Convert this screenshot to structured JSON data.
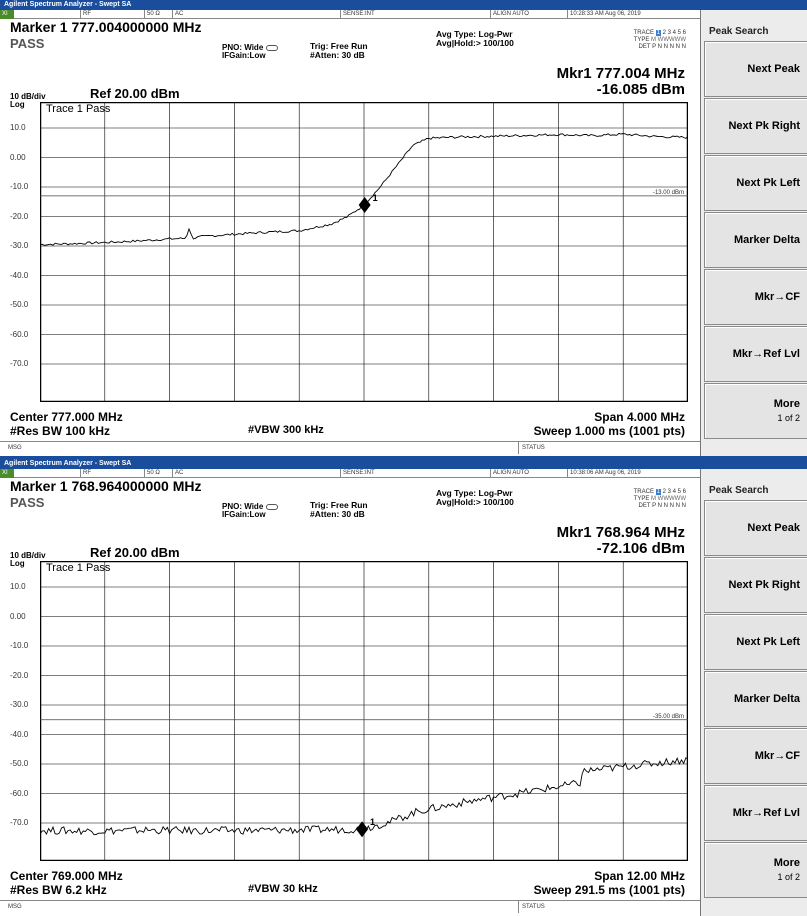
{
  "windows": [
    {
      "title": "Agilent Spectrum Analyzer - Swept SA",
      "infobar": {
        "x": "XI",
        "rf": "RF",
        "ohm": "50 Ω",
        "ac": "AC",
        "sense": "SENSE:INT",
        "align": "ALIGN AUTO",
        "time": "10:28:33 AM Aug 06, 2019"
      },
      "marker_title": "Marker 1 777.004000000 MHz",
      "pass": "PASS",
      "pno": "PNO: Wide",
      "ifgain": "IFGain:Low",
      "trig": "Trig: Free Run",
      "atten": "#Atten: 30 dB",
      "avg_type": "Avg Type: Log-Pwr",
      "avg_hold": "Avg|Hold:> 100/100",
      "trace_row": "TRACE 1 2 3 4 5 6",
      "trace_num": "1",
      "trace_rest": " 2 3 4 5 6",
      "trace_label": "TRACE",
      "type_label": "TYPE",
      "type_row": "M WWWWW",
      "det_label": "DET",
      "det_row": "P N N N N N",
      "mkr_freq": "Mkr1 777.004 MHz",
      "mkr_amp": "-16.085 dBm",
      "scale1": "10 dB/div",
      "scale2": "Log",
      "ref": "Ref 20.00 dBm",
      "trace_name": "Trace 1 Pass",
      "limit_label": "-13.00 dBm",
      "marker_label": "1",
      "ylabels": [
        "10.0",
        "0.00",
        "-10.0",
        "-20.0",
        "-30.0",
        "-40.0",
        "-50.0",
        "-60.0",
        "-70.0"
      ],
      "center": "Center 777.000 MHz",
      "resbw": "#Res BW 100 kHz",
      "vbw": "#VBW 300 kHz",
      "span": "Span 4.000 MHz",
      "sweep": "Sweep  1.000 ms (1001 pts)",
      "msg": "MSG",
      "status": "STATUS",
      "softkeys": {
        "title": "Peak Search",
        "buttons": [
          "Next Peak",
          "Next Pk Right",
          "Next Pk Left",
          "Marker Delta",
          "Mkr→CF",
          "Mkr→Ref Lvl"
        ],
        "more": "More",
        "more_sub": "1 of 2"
      }
    },
    {
      "title": "Agilent Spectrum Analyzer - Swept SA",
      "infobar": {
        "x": "XI",
        "rf": "RF",
        "ohm": "50 Ω",
        "ac": "AC",
        "sense": "SENSE:INT",
        "align": "ALIGN AUTO",
        "time": "10:38:06 AM Aug 06, 2019"
      },
      "marker_title": "Marker 1 768.964000000 MHz",
      "pass": "PASS",
      "pno": "PNO: Wide",
      "ifgain": "IFGain:Low",
      "trig": "Trig: Free Run",
      "atten": "#Atten: 30 dB",
      "avg_type": "Avg Type: Log-Pwr",
      "avg_hold": "Avg|Hold:> 100/100",
      "trace_num": "1",
      "trace_rest": " 2 3 4 5 6",
      "trace_label": "TRACE",
      "type_label": "TYPE",
      "type_row": "M WWWWW",
      "det_label": "DET",
      "det_row": "P N N N N N",
      "mkr_freq": "Mkr1 768.964 MHz",
      "mkr_amp": "-72.106 dBm",
      "scale1": "10 dB/div",
      "scale2": "Log",
      "ref": "Ref 20.00 dBm",
      "trace_name": "Trace 1 Pass",
      "limit_label": "-35.00 dBm",
      "marker_label": "1",
      "ylabels": [
        "10.0",
        "0.00",
        "-10.0",
        "-20.0",
        "-30.0",
        "-40.0",
        "-50.0",
        "-60.0",
        "-70.0"
      ],
      "center": "Center 769.000 MHz",
      "resbw": "#Res BW 6.2 kHz",
      "vbw": "#VBW 30 kHz",
      "span": "Span 12.00 MHz",
      "sweep": "Sweep  291.5 ms (1001 pts)",
      "msg": "MSG",
      "status": "STATUS",
      "softkeys": {
        "title": "Peak Search",
        "buttons": [
          "Next Peak",
          "Next Pk Right",
          "Next Pk Left",
          "Marker Delta",
          "Mkr→CF",
          "Mkr→Ref Lvl"
        ],
        "more": "More",
        "more_sub": "1 of 2"
      }
    }
  ],
  "colors": {
    "titlebar": "#1a4e9c",
    "trace": "#000000",
    "grid": "#000000",
    "limit": "#000000"
  },
  "chart_data": [
    {
      "type": "line",
      "title": "",
      "xlabel": "",
      "ylabel": "",
      "x_range_mhz": [
        775.0,
        779.0
      ],
      "ylim": [
        -80,
        20
      ],
      "limit_dbm": -13.0,
      "marker": {
        "x": 777.004,
        "y": -16.085
      },
      "series": [
        {
          "values_x": [
            775.0,
            775.2,
            775.4,
            775.6,
            775.8,
            775.9,
            775.92,
            775.94,
            776.0,
            776.2,
            776.4,
            776.6,
            776.8,
            776.9,
            777.0,
            777.1,
            777.2,
            777.3,
            777.4,
            777.6,
            777.8,
            778.0,
            778.2,
            778.4,
            778.6,
            778.8,
            779.0
          ],
          "values_y": [
            -29.5,
            -29.2,
            -28.8,
            -28.3,
            -27.6,
            -27.4,
            -24.0,
            -27.4,
            -26.8,
            -26.0,
            -25.3,
            -24.8,
            -22.5,
            -20.0,
            -16.1,
            -10.0,
            -3.0,
            4.0,
            6.5,
            7.0,
            7.2,
            7.5,
            7.8,
            7.4,
            7.9,
            7.1,
            6.8
          ]
        }
      ]
    },
    {
      "type": "line",
      "title": "",
      "xlabel": "",
      "ylabel": "",
      "x_range_mhz": [
        763.0,
        775.0
      ],
      "ylim": [
        -80,
        20
      ],
      "limit_dbm": -35.0,
      "marker": {
        "x": 768.964,
        "y": -72.106
      },
      "series": [
        {
          "values_x": [
            763.0,
            764.0,
            765.0,
            766.0,
            767.0,
            768.0,
            768.964,
            769.5,
            770.0,
            771.0,
            772.0,
            773.0,
            773.05,
            774.0,
            775.0
          ],
          "values_y": [
            -72.5,
            -72.7,
            -72.4,
            -72.6,
            -72.5,
            -72.3,
            -72.1,
            -69.5,
            -66.0,
            -62.5,
            -59.5,
            -56.5,
            -52.5,
            -50.5,
            -48.5
          ]
        }
      ]
    }
  ]
}
